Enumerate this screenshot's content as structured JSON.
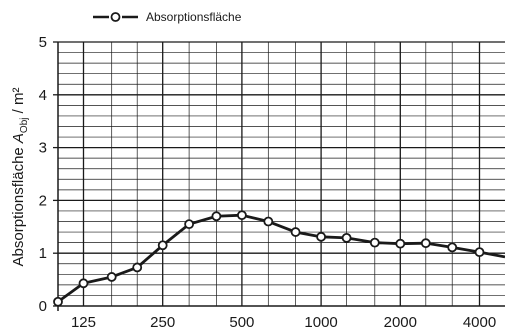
{
  "chart_data": {
    "type": "line",
    "x_scale": "log",
    "x": [
      100,
      125,
      160,
      200,
      250,
      315,
      400,
      500,
      630,
      800,
      1000,
      1250,
      1600,
      2000,
      2500,
      3150,
      4000,
      5000
    ],
    "x_tick_labels": [
      "125",
      "250",
      "500",
      "1000",
      "2000",
      "4000"
    ],
    "y_tick_labels": [
      "0",
      "1",
      "2",
      "3",
      "4",
      "5"
    ],
    "ylim": [
      0,
      5
    ],
    "ylabel_main": "Absorptionsfläche ",
    "ylabel_symbol": "A",
    "ylabel_subscript": "Obj",
    "ylabel_unit": " / m²",
    "series": [
      {
        "name": "Absorptionsfläche",
        "values": [
          0.08,
          0.43,
          0.55,
          0.73,
          1.15,
          1.55,
          1.7,
          1.72,
          1.6,
          1.4,
          1.31,
          1.29,
          1.2,
          1.18,
          1.19,
          1.11,
          1.02,
          0.93
        ]
      }
    ],
    "grid": true,
    "legend_position": "top-left",
    "colors": {
      "line": "#1a1a1a",
      "marker_fill": "#ffffff",
      "grid": "#1a1a1a"
    }
  }
}
